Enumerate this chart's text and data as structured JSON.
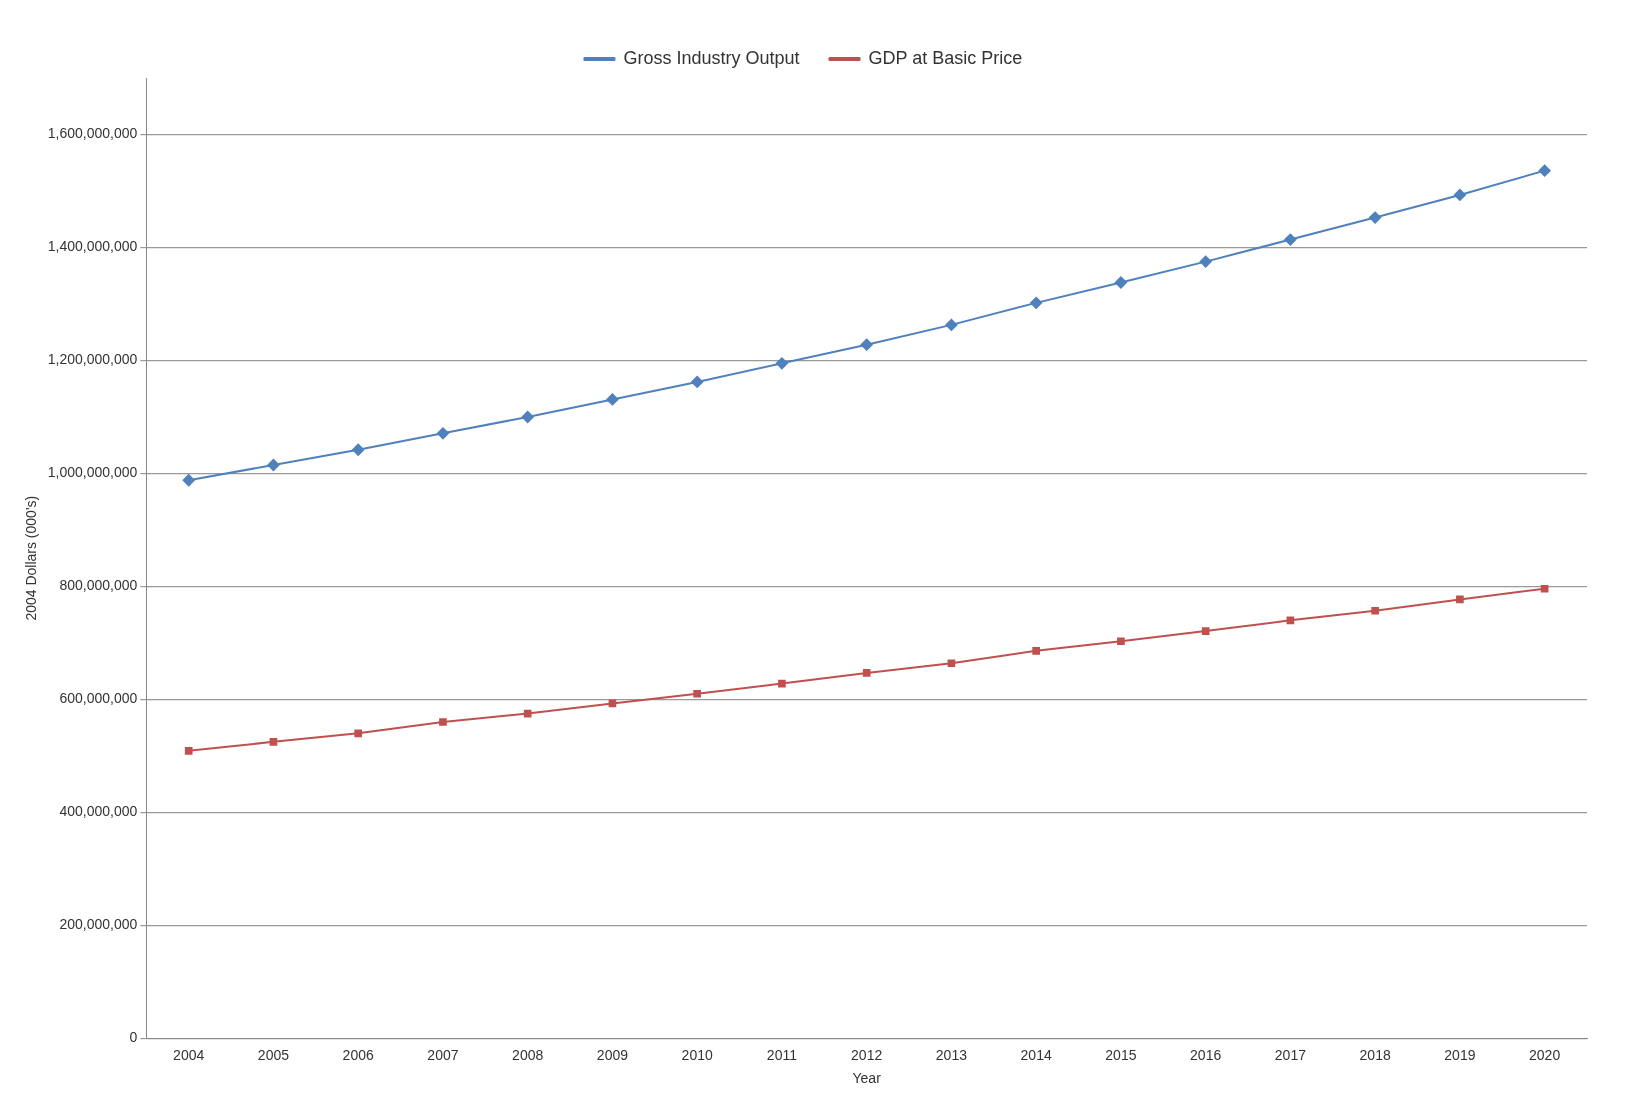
{
  "chart_data": {
    "type": "line",
    "xlabel": "Year",
    "ylabel": "2004 Dollars (000's)",
    "categories": [
      "2004",
      "2005",
      "2006",
      "2007",
      "2008",
      "2009",
      "2010",
      "2011",
      "2012",
      "2013",
      "2014",
      "2015",
      "2016",
      "2017",
      "2018",
      "2019",
      "2020"
    ],
    "series": [
      {
        "name": "Gross Industry Output",
        "color": "#4f81bd",
        "marker": "diamond",
        "values": [
          988000000,
          1015000000,
          1042000000,
          1071000000,
          1100000000,
          1131000000,
          1162000000,
          1195000000,
          1228000000,
          1263000000,
          1302000000,
          1338000000,
          1375000000,
          1414000000,
          1453000000,
          1493000000,
          1536000000
        ]
      },
      {
        "name": "GDP at Basic Price",
        "color": "#c0504d",
        "marker": "square",
        "values": [
          509000000,
          525000000,
          540000000,
          560000000,
          575000000,
          593000000,
          610000000,
          628000000,
          647000000,
          664000000,
          686000000,
          703000000,
          721000000,
          740000000,
          757000000,
          777000000,
          796000000
        ]
      }
    ],
    "ylim": [
      0,
      1700000000
    ],
    "yticks": [
      {
        "value": 0,
        "label": "0"
      },
      {
        "value": 200000000,
        "label": "200,000,000"
      },
      {
        "value": 400000000,
        "label": "400,000,000"
      },
      {
        "value": 600000000,
        "label": "600,000,000"
      },
      {
        "value": 800000000,
        "label": "800,000,000"
      },
      {
        "value": 1000000000,
        "label": "1,000,000,000"
      },
      {
        "value": 1200000000,
        "label": "1,200,000,000"
      },
      {
        "value": 1400000000,
        "label": "1,400,000,000"
      },
      {
        "value": 1600000000,
        "label": "1,600,000,000"
      }
    ],
    "grid": "y",
    "legend": "top"
  }
}
